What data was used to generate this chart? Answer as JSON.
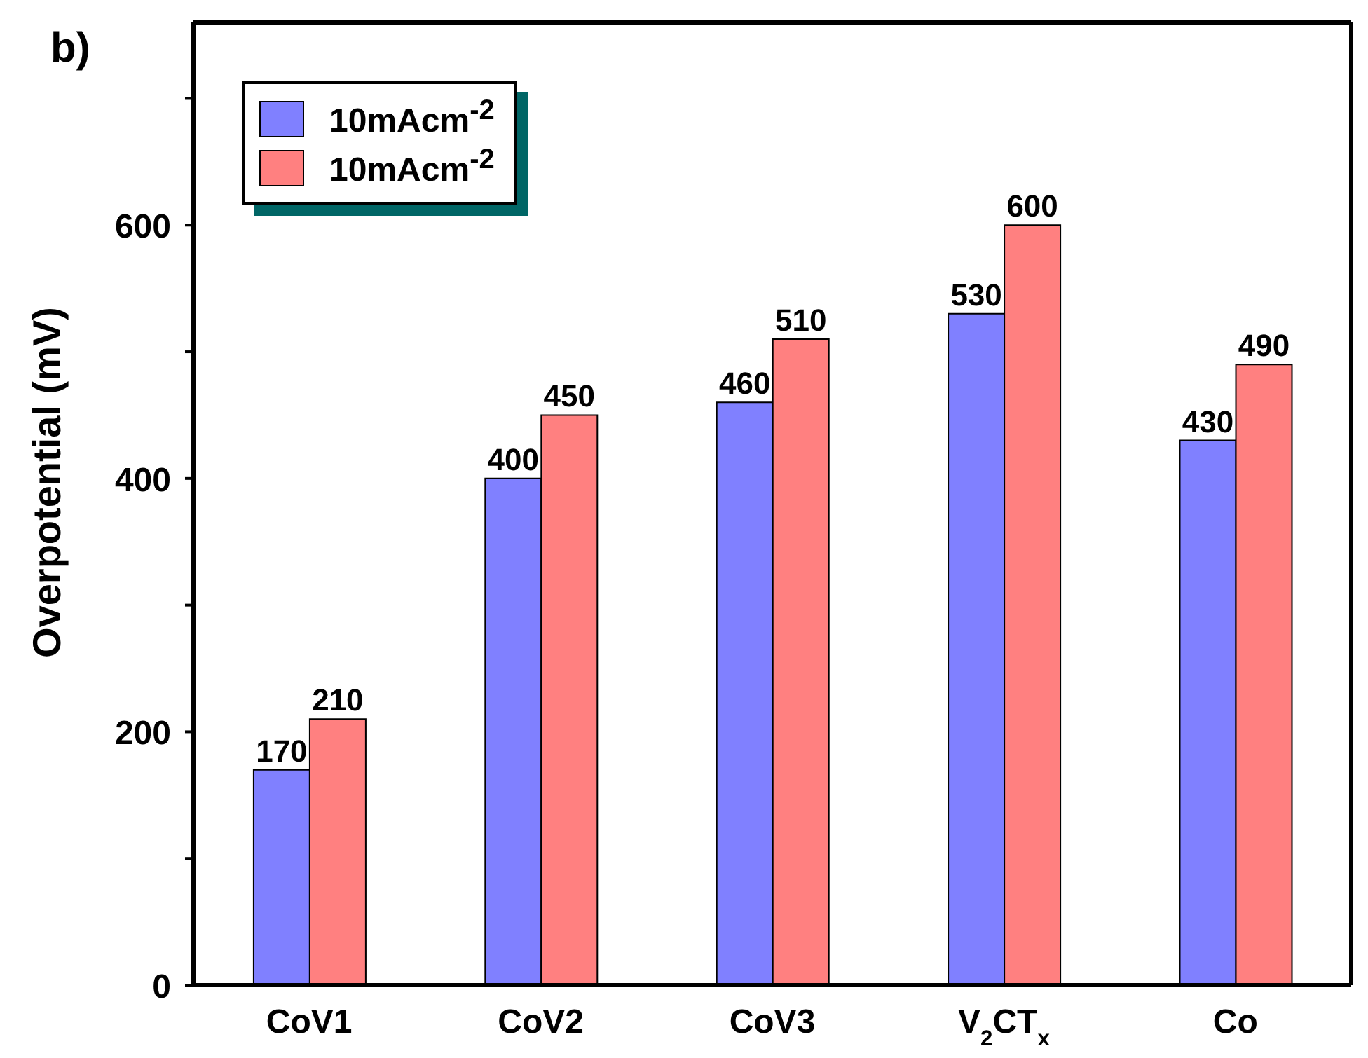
{
  "chart_data": {
    "type": "bar",
    "ylabel": "Overpotential (mV)",
    "annotations": [
      "b)"
    ],
    "categories": [
      "CoV1",
      "CoV2",
      "CoV3",
      "V$_{2}$CT$_{x}$",
      "Co"
    ],
    "series": [
      {
        "name": "10mAcm$^{-2}$",
        "color": "#8080ff",
        "values": [
          170,
          400,
          460,
          530,
          430
        ]
      },
      {
        "name": "10mAcm$^{-2}$",
        "color": "#ff8080",
        "values": [
          210,
          450,
          510,
          600,
          490
        ]
      }
    ],
    "ylim": [
      0,
      760
    ],
    "yticks": [
      0,
      {
        "value": 100,
        "label": null
      },
      200,
      {
        "value": 300,
        "label": null
      },
      400,
      {
        "value": 500,
        "label": null
      },
      600,
      {
        "value": 700,
        "label": null
      }
    ],
    "data_labels": true,
    "legend": "top left",
    "grid": false
  }
}
